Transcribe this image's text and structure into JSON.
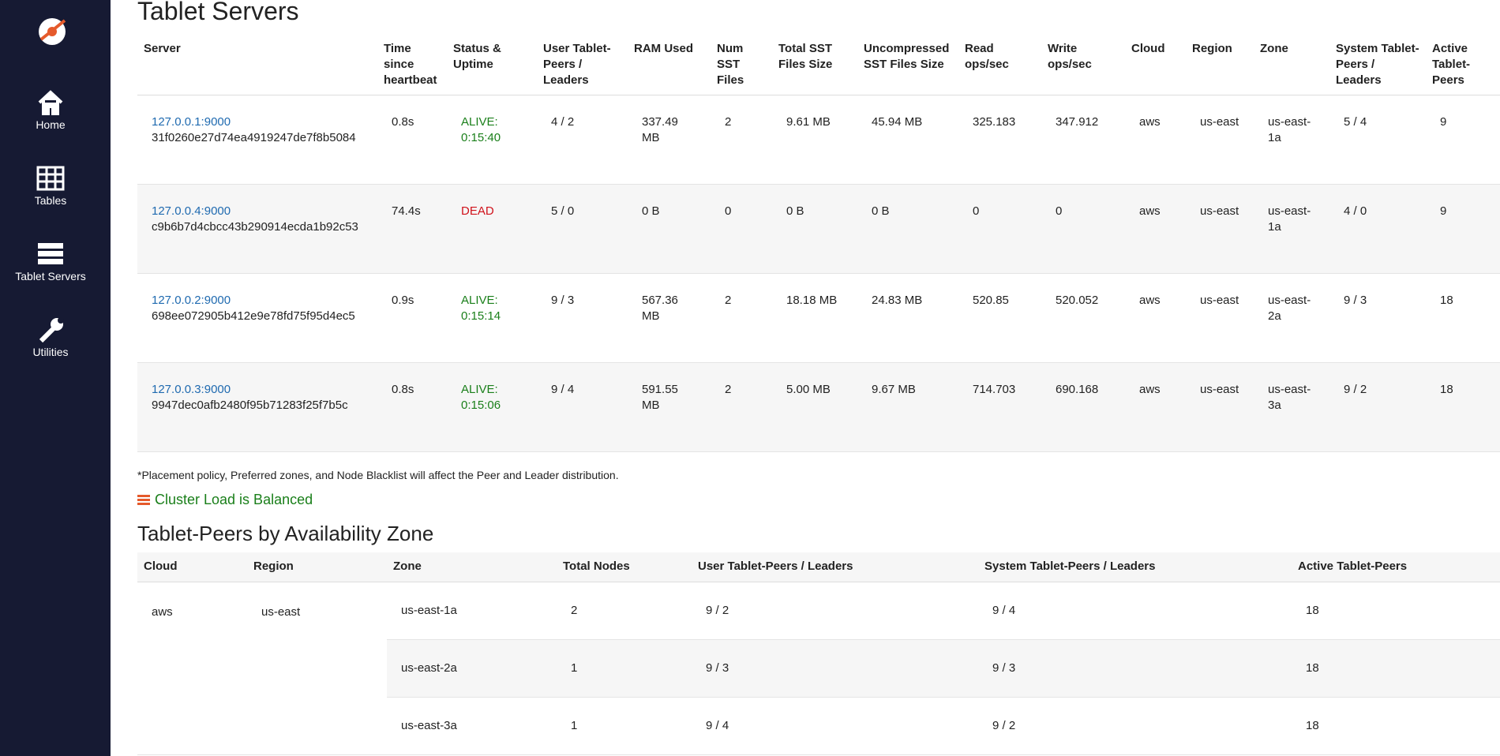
{
  "sidebar": {
    "items": [
      "Home",
      "Tables",
      "Tablet Servers",
      "Utilities"
    ]
  },
  "servers": {
    "title": "Tablet Servers",
    "columns": [
      "Server",
      "Time since heartbeat",
      "Status & Uptime",
      "User Tablet-Peers / Leaders",
      "RAM Used",
      "Num SST Files",
      "Total SST Files Size",
      "Uncompressed SST Files Size",
      "Read ops/sec",
      "Write ops/sec",
      "Cloud",
      "Region",
      "Zone",
      "System Tablet-Peers / Leaders",
      "Active Tablet-Peers"
    ],
    "rows": [
      {
        "address": "127.0.0.1:9000",
        "uuid": "31f0260e27d74ea4919247de7f8b5084",
        "status_color": "#1a7f1a",
        "cells": [
          "0.8s",
          "ALIVE: 0:15:40",
          "4 / 2",
          "337.49 MB",
          "2",
          "9.61 MB",
          "45.94 MB",
          "325.183",
          "347.912",
          "aws",
          "us-east",
          "us-east-1a",
          "5 / 4",
          "9"
        ]
      },
      {
        "address": "127.0.0.4:9000",
        "uuid": "c9b6b7d4cbcc43b290914ecda1b92c53",
        "status_color": "#d0121b",
        "cells": [
          "74.4s",
          "DEAD",
          "5 / 0",
          "0 B",
          "0",
          "0 B",
          "0 B",
          "0",
          "0",
          "aws",
          "us-east",
          "us-east-1a",
          "4 / 0",
          "9"
        ]
      },
      {
        "address": "127.0.0.2:9000",
        "uuid": "698ee072905b412e9e78fd75f95d4ec5",
        "status_color": "#1a7f1a",
        "cells": [
          "0.9s",
          "ALIVE: 0:15:14",
          "9 / 3",
          "567.36 MB",
          "2",
          "18.18 MB",
          "24.83 MB",
          "520.85",
          "520.052",
          "aws",
          "us-east",
          "us-east-2a",
          "9 / 3",
          "18"
        ]
      },
      {
        "address": "127.0.0.3:9000",
        "uuid": "9947dec0afb2480f95b71283f25f7b5c",
        "status_color": "#1a7f1a",
        "cells": [
          "0.8s",
          "ALIVE: 0:15:06",
          "9 / 4",
          "591.55 MB",
          "2",
          "5.00 MB",
          "9.67 MB",
          "714.703",
          "690.168",
          "aws",
          "us-east",
          "us-east-3a",
          "9 / 2",
          "18"
        ]
      }
    ]
  },
  "note": "*Placement policy, Preferred zones, and Node Blacklist will affect the Peer and Leader distribution.",
  "balance": "Cluster Load is Balanced",
  "zones": {
    "title": "Tablet-Peers by Availability Zone",
    "columns": [
      "Cloud",
      "Region",
      "Zone",
      "Total Nodes",
      "User Tablet-Peers / Leaders",
      "System Tablet-Peers / Leaders",
      "Active Tablet-Peers"
    ],
    "cloud": "aws",
    "region": "us-east",
    "rows": [
      [
        "us-east-1a",
        "2",
        "9 / 2",
        "9 / 4",
        "18"
      ],
      [
        "us-east-2a",
        "1",
        "9 / 3",
        "9 / 3",
        "18"
      ],
      [
        "us-east-3a",
        "1",
        "9 / 4",
        "9 / 2",
        "18"
      ]
    ]
  }
}
